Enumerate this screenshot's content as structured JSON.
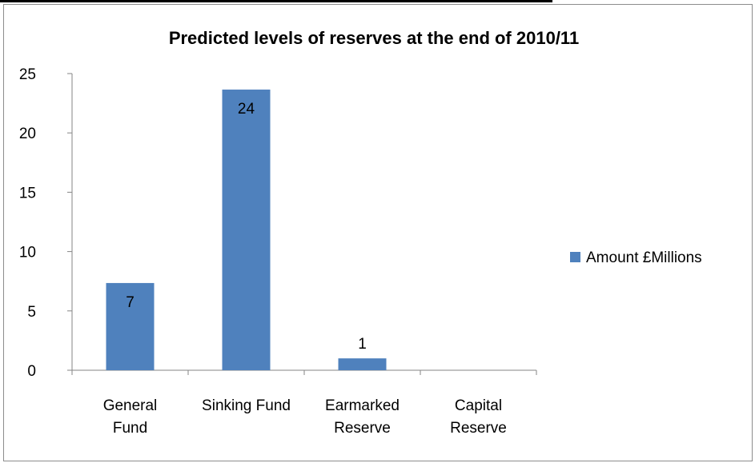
{
  "chart_data": {
    "type": "bar",
    "title": "Predicted levels of reserves at the end of 2010/11",
    "categories": [
      [
        "General",
        "Fund"
      ],
      [
        "Sinking Fund"
      ],
      [
        "Earmarked",
        "Reserve"
      ],
      [
        "Capital",
        "Reserve"
      ]
    ],
    "series": [
      {
        "name": "Amount £Millions",
        "values": [
          7.35,
          23.65,
          1.0,
          0
        ],
        "data_labels": [
          "7",
          "24",
          "1",
          ""
        ],
        "color": "#4f81bd"
      }
    ],
    "ylim": [
      0,
      25
    ],
    "yticks": [
      0,
      5,
      10,
      15,
      20,
      25
    ],
    "grid": false,
    "legend_position": "right"
  }
}
